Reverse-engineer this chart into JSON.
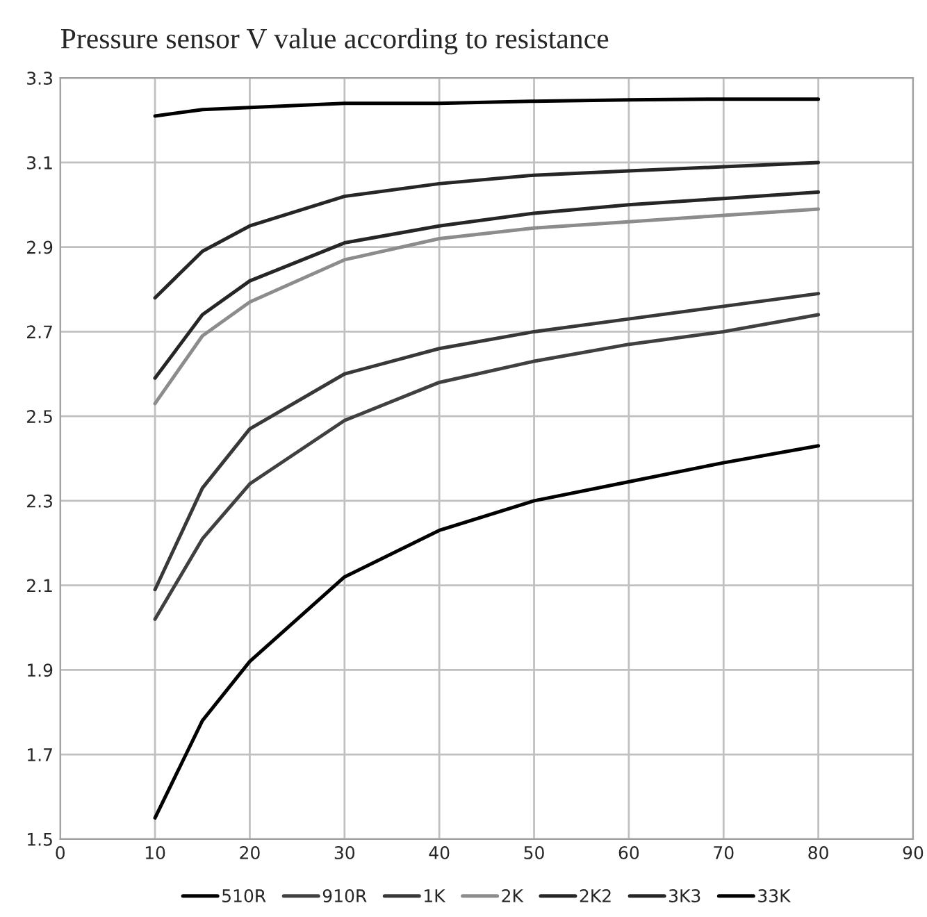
{
  "chart_data": {
    "type": "line",
    "title": "Pressure sensor V value according to resistance",
    "x": [
      10,
      15,
      20,
      30,
      40,
      50,
      60,
      70,
      80
    ],
    "series": [
      {
        "name": "510R",
        "color": "#000000",
        "values": [
          1.55,
          1.78,
          1.92,
          2.12,
          2.23,
          2.3,
          2.345,
          2.39,
          2.43
        ]
      },
      {
        "name": "910R",
        "color": "#404040",
        "values": [
          2.02,
          2.21,
          2.34,
          2.49,
          2.58,
          2.63,
          2.67,
          2.7,
          2.74
        ]
      },
      {
        "name": "1K",
        "color": "#383838",
        "values": [
          2.09,
          2.33,
          2.47,
          2.6,
          2.66,
          2.7,
          2.73,
          2.76,
          2.79
        ]
      },
      {
        "name": "2K",
        "color": "#8c8c8c",
        "values": [
          2.53,
          2.69,
          2.77,
          2.87,
          2.92,
          2.945,
          2.96,
          2.975,
          2.99
        ]
      },
      {
        "name": "2K2",
        "color": "#262626",
        "values": [
          2.59,
          2.74,
          2.82,
          2.91,
          2.95,
          2.98,
          3.0,
          3.015,
          3.03
        ]
      },
      {
        "name": "3K3",
        "color": "#262626",
        "values": [
          2.78,
          2.89,
          2.95,
          3.02,
          3.05,
          3.07,
          3.08,
          3.09,
          3.1
        ]
      },
      {
        "name": "33K",
        "color": "#000000",
        "values": [
          3.21,
          3.225,
          3.23,
          3.24,
          3.24,
          3.245,
          3.248,
          3.25,
          3.25
        ]
      }
    ],
    "xlim": [
      0,
      90
    ],
    "xticks": [
      0,
      10,
      20,
      30,
      40,
      50,
      60,
      70,
      80,
      90
    ],
    "ylim": [
      1.5,
      3.3
    ],
    "yticks": [
      1.5,
      1.7,
      1.9,
      2.1,
      2.3,
      2.5,
      2.7,
      2.9,
      3.1,
      3.3
    ],
    "grid": true,
    "legend": "bottom",
    "marker": "none",
    "line_style": "solid"
  }
}
